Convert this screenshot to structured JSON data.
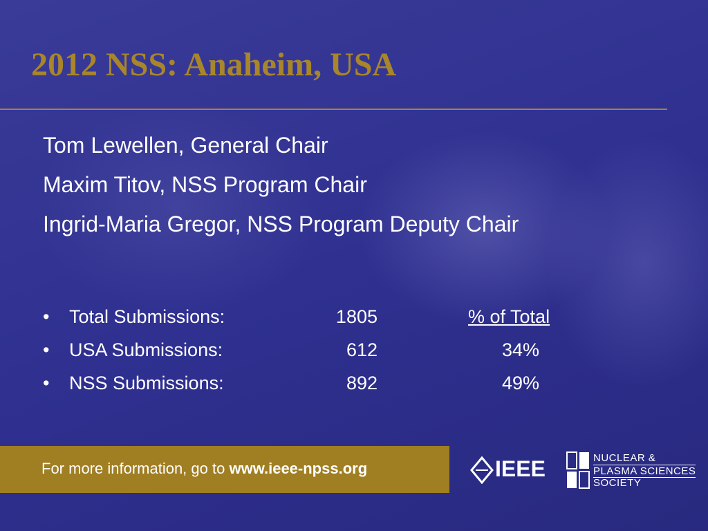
{
  "header": {
    "title": "2012 NSS: Anaheim, USA"
  },
  "people": [
    "Tom Lewellen, General Chair",
    "Maxim Titov, NSS Program Chair",
    "Ingrid-Maria Gregor, NSS Program Deputy Chair"
  ],
  "stats": {
    "percent_header": "% of Total",
    "rows": [
      {
        "label": "Total Submissions:",
        "count": "1805",
        "percent": null
      },
      {
        "label": "USA Submissions:",
        "count": "612",
        "percent": "34%"
      },
      {
        "label": "NSS Submissions:",
        "count": "892",
        "percent": "49%"
      }
    ]
  },
  "footer": {
    "text": "For more information, go to",
    "link": "www.ieee-npss.org"
  },
  "logos": {
    "ieee": "IEEE",
    "society": [
      "NUCLEAR &",
      "PLASMA SCIENCES",
      "SOCIETY"
    ]
  }
}
